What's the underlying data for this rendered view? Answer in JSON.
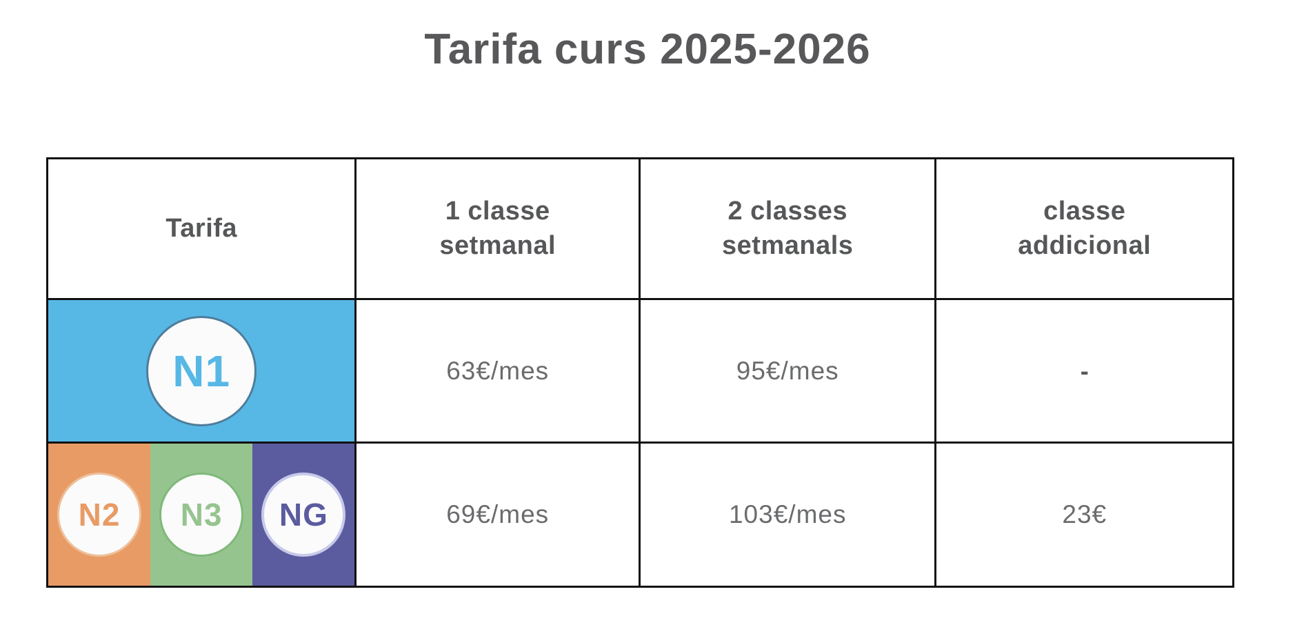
{
  "title": "Tarifa curs 2025-2026",
  "table": {
    "columns": {
      "tarifa": "Tarifa",
      "one_class": "1 classe\nsetmanal",
      "two_classes": "2 classes\nsetmanals",
      "additional": "classe\naddicional"
    },
    "rows": [
      {
        "levels": [
          {
            "code": "N1",
            "color": "#57b8e6",
            "ring": "#4e7d9b"
          }
        ],
        "one_class": "63€/mes",
        "two_classes": "95€/mes",
        "additional": "-"
      },
      {
        "levels": [
          {
            "code": "N2",
            "color": "#e89b65",
            "ring": "#eec09a"
          },
          {
            "code": "N3",
            "color": "#96c48f",
            "ring": "#7fb97a"
          },
          {
            "code": "NG",
            "color": "#5b5b9f",
            "ring": "#c7cae9"
          }
        ],
        "one_class": "69€/mes",
        "two_classes": "103€/mes",
        "additional": "23€"
      }
    ]
  },
  "colors": {
    "title_text": "#58585a",
    "header_text": "#565759",
    "price_text": "#6a6b6d",
    "table_border": "#111111",
    "badge_fill": "#fbfbfc"
  }
}
